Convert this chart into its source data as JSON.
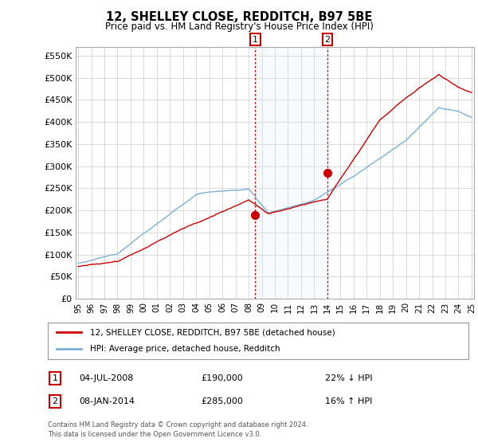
{
  "title": "12, SHELLEY CLOSE, REDDITCH, B97 5BE",
  "subtitle": "Price paid vs. HM Land Registry's House Price Index (HPI)",
  "ylim": [
    0,
    570000
  ],
  "yticks": [
    0,
    50000,
    100000,
    150000,
    200000,
    250000,
    300000,
    350000,
    400000,
    450000,
    500000,
    550000
  ],
  "ytick_labels": [
    "£0",
    "£50K",
    "£100K",
    "£150K",
    "£200K",
    "£250K",
    "£300K",
    "£350K",
    "£400K",
    "£450K",
    "£500K",
    "£550K"
  ],
  "background_color": "#ffffff",
  "plot_bg_color": "#ffffff",
  "grid_color": "#cccccc",
  "sale1_date": "04-JUL-2008",
  "sale1_price": 190000,
  "sale1_pct": "22%",
  "sale1_dir": "↓",
  "sale2_date": "08-JAN-2014",
  "sale2_price": 285000,
  "sale2_dir": "↑",
  "sale2_pct": "16%",
  "legend_label1": "12, SHELLEY CLOSE, REDDITCH, B97 5BE (detached house)",
  "legend_label2": "HPI: Average price, detached house, Redditch",
  "footer": "Contains HM Land Registry data © Crown copyright and database right 2024.\nThis data is licensed under the Open Government Licence v3.0.",
  "red_color": "#cc0000",
  "blue_color": "#7ab0d8",
  "shade_color": "#dce9f5",
  "vline_color": "#cc0000",
  "x_start_year": 1995,
  "x_end_year": 2025
}
